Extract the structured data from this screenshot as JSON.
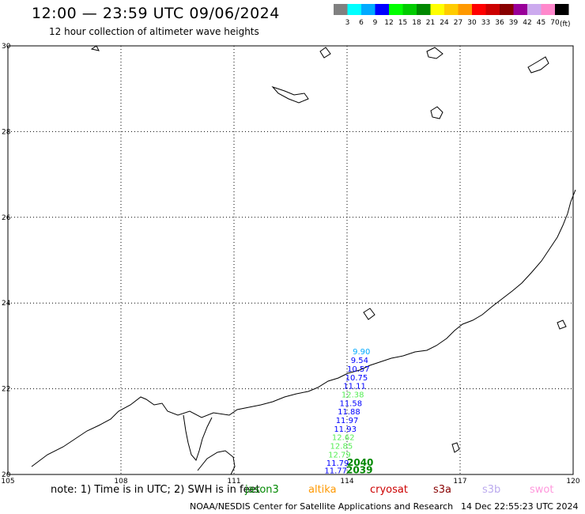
{
  "header": {
    "title": "12:00 — 23:59 UTC 09/06/2024",
    "subtitle": "12 hour collection of altimeter wave heights"
  },
  "colorbar": {
    "unit": "(ft)",
    "colors": [
      "#808080",
      "#00ffff",
      "#00aaff",
      "#0000ff",
      "#00ff00",
      "#00cc00",
      "#008800",
      "#ffff00",
      "#ffcc00",
      "#ff9900",
      "#ff0000",
      "#cc0000",
      "#880000",
      "#990099",
      "#ccaaee",
      "#ff88cc",
      "#000000"
    ],
    "labels": [
      "3",
      "6",
      "9",
      "12",
      "15",
      "18",
      "21",
      "24",
      "27",
      "30",
      "33",
      "36",
      "39",
      "42",
      "45",
      "70"
    ]
  },
  "map": {
    "lon_range": [
      105,
      120
    ],
    "lat_range": [
      20,
      30
    ],
    "lon_ticks": [
      "105",
      "108",
      "111",
      "114",
      "117",
      "120"
    ],
    "lat_ticks": [
      "30",
      "28",
      "26",
      "24",
      "22",
      "20"
    ],
    "grid": "dotted"
  },
  "wave_heights": [
    {
      "label": "9.90",
      "lon": 114.15,
      "lat": 22.8,
      "color": "#00aaff"
    },
    {
      "label": "9.54",
      "lon": 114.1,
      "lat": 22.6,
      "color": "#0000ff"
    },
    {
      "label": "10.57",
      "lon": 114.0,
      "lat": 22.4,
      "color": "#0000ff"
    },
    {
      "label": "10.75",
      "lon": 113.95,
      "lat": 22.2,
      "color": "#0000ff"
    },
    {
      "label": "11.11",
      "lon": 113.9,
      "lat": 22.0,
      "color": "#0000ff"
    },
    {
      "label": "12.38",
      "lon": 113.85,
      "lat": 21.8,
      "color": "#55ee55"
    },
    {
      "label": "11.58",
      "lon": 113.8,
      "lat": 21.6,
      "color": "#0000ff"
    },
    {
      "label": "11.88",
      "lon": 113.75,
      "lat": 21.4,
      "color": "#0000ff"
    },
    {
      "label": "11.97",
      "lon": 113.7,
      "lat": 21.2,
      "color": "#0000ff"
    },
    {
      "label": "11.93",
      "lon": 113.65,
      "lat": 21.0,
      "color": "#0000ff"
    },
    {
      "label": "12.62",
      "lon": 113.6,
      "lat": 20.8,
      "color": "#55ee55"
    },
    {
      "label": "12.85",
      "lon": 113.55,
      "lat": 20.6,
      "color": "#55ee55"
    },
    {
      "label": "12.79",
      "lon": 113.5,
      "lat": 20.4,
      "color": "#55ee55"
    },
    {
      "label": "11.79",
      "lon": 113.45,
      "lat": 20.2,
      "color": "#0000ff"
    },
    {
      "label": "11.77",
      "lon": 113.4,
      "lat": 20.03,
      "color": "#0000ff"
    }
  ],
  "track_ids": [
    {
      "label": "2040",
      "lon": 114.0,
      "lat": 20.2,
      "color": "#008800"
    },
    {
      "label": "2039",
      "lon": 113.98,
      "lat": 20.03,
      "color": "#008800"
    }
  ],
  "legend": {
    "note": "note: 1) Time is in UTC; 2) SWH is in feet",
    "satellites": [
      {
        "name": "jason3",
        "color": "#008800"
      },
      {
        "name": "altika",
        "color": "#ff9900"
      },
      {
        "name": "cryosat",
        "color": "#cc0000"
      },
      {
        "name": "s3a",
        "color": "#880000"
      },
      {
        "name": "s3b",
        "color": "#bbaaee"
      },
      {
        "name": "swot",
        "color": "#ff99dd"
      }
    ]
  },
  "footer": {
    "source": "NOAA/NESDIS Center for Satellite Applications and Research",
    "generated": "14 Dec 22:55:23 UTC 2024"
  }
}
